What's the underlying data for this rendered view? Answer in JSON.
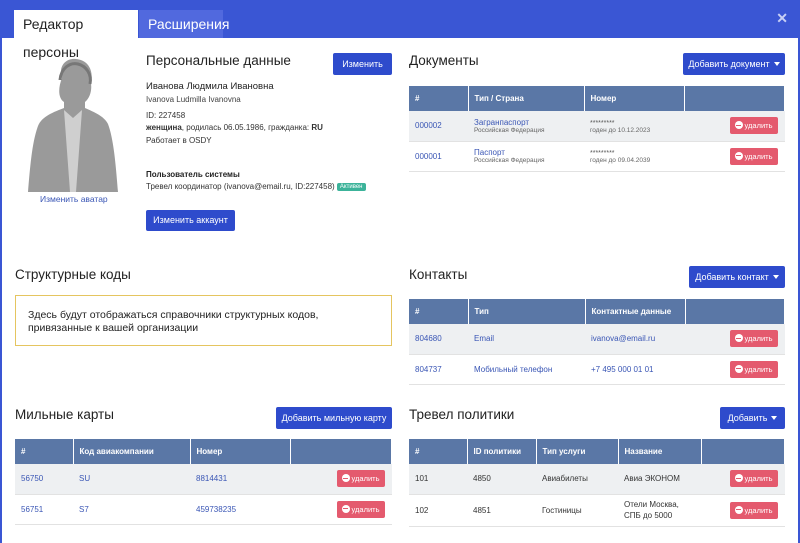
{
  "tabs": {
    "editor": "Редактор персоны",
    "extensions": "Расширения"
  },
  "close_glyph": "✕",
  "personal": {
    "title": "Персональные данные",
    "edit_button": "Изменить",
    "name_ru": "Иванова Людмила Ивановна",
    "name_en": "Ivanova Ludmilla Ivanovna",
    "id_line": "ID: 227458",
    "gender": "женщина",
    "birth_citizenship": ", родилась 06.05.1986, гражданка: ",
    "citizenship": "RU",
    "works_at": "Работает в OSDY",
    "change_avatar": "Изменить аватар",
    "system_user_title": "Пользователь системы",
    "system_user_line": "Тревел координатор (ivanova@email.ru, ID:227458)",
    "status_badge": "Активен",
    "change_account": "Изменить аккаунт"
  },
  "documents": {
    "title": "Документы",
    "add_button": "Добавить документ",
    "columns": [
      "#",
      "Тип / Страна",
      "Номер",
      ""
    ],
    "rows": [
      {
        "num": "000002",
        "type": "Загранпаспорт",
        "country": "Российская Федерация",
        "masked": "*********",
        "valid": "годен до 10.12.2023"
      },
      {
        "num": "000001",
        "type": "Паспорт",
        "country": "Российская Федерация",
        "masked": "*********",
        "valid": "годен до 09.04.2039"
      }
    ]
  },
  "structural": {
    "title": "Структурные коды",
    "notice": "Здесь будут отображаться справочники структурных кодов, привязанные к вашей организации"
  },
  "contacts": {
    "title": "Контакты",
    "add_button": "Добавить контакт",
    "columns": [
      "#",
      "Тип",
      "Контактные данные",
      ""
    ],
    "rows": [
      {
        "num": "804680",
        "type": "Email",
        "value": "ivanova@email.ru"
      },
      {
        "num": "804737",
        "type": "Мобильный телефон",
        "value": "+7 495 000 01 01"
      }
    ]
  },
  "miles": {
    "title": "Мильные карты",
    "add_button": "Добавить мильную карту",
    "columns": [
      "#",
      "Код авиакомпании",
      "Номер",
      ""
    ],
    "rows": [
      {
        "num": "56750",
        "code": "SU",
        "number": "8814431"
      },
      {
        "num": "56751",
        "code": "S7",
        "number": "459738235"
      }
    ]
  },
  "policies": {
    "title": "Тревел политики",
    "add_button": "Добавить",
    "columns": [
      "#",
      "ID политики",
      "Тип услуги",
      "Название",
      ""
    ],
    "rows": [
      {
        "num": "101",
        "id": "4850",
        "service": "Авиабилеты",
        "name": "Авиа ЭКОНОМ"
      },
      {
        "num": "102",
        "id": "4851",
        "service": "Гостиницы",
        "name": "Отели Москва, СПБ до 5000"
      }
    ]
  },
  "delete_label": "удалить"
}
